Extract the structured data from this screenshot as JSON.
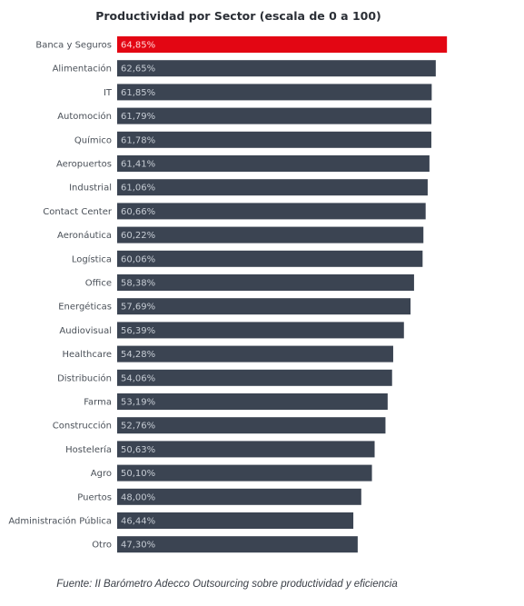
{
  "chart_data": {
    "type": "bar",
    "orientation": "horizontal",
    "title": "Productividad por Sector (escala de 0 a 100)",
    "categories": [
      "Banca y Seguros",
      "Alimentación",
      "IT",
      "Automoción",
      "Químico",
      "Aeropuertos",
      "Industrial",
      "Contact Center",
      "Aeronáutica",
      "Logística",
      "Office",
      "Energéticas",
      "Audiovisual",
      "Healthcare",
      "Distribución",
      "Farma",
      "Construcción",
      "Hostelería",
      "Agro",
      "Puertos",
      "Administración Pública",
      "Otro"
    ],
    "values": [
      64.85,
      62.65,
      61.85,
      61.79,
      61.78,
      61.41,
      61.06,
      60.66,
      60.22,
      60.06,
      58.38,
      57.69,
      56.39,
      54.28,
      54.06,
      53.19,
      52.76,
      50.63,
      50.1,
      48.0,
      46.44,
      47.3
    ],
    "value_labels": [
      "64,85%",
      "62,65%",
      "61,85%",
      "61,79%",
      "61,78%",
      "61,41%",
      "61,06%",
      "60,66%",
      "60,22%",
      "60,06%",
      "58,38%",
      "57,69%",
      "56,39%",
      "54,28%",
      "54,06%",
      "53,19%",
      "52,76%",
      "50,63%",
      "50,10%",
      "48,00%",
      "46,44%",
      "47,30%"
    ],
    "highlight_index": 0,
    "colors": {
      "highlight": "#e30613",
      "default": "#3b4452"
    },
    "xlim": [
      0,
      100
    ],
    "grid": false,
    "legend": "none"
  },
  "source": "Fuente: II Barómetro Adecco Outsourcing sobre productividad y eficiencia"
}
